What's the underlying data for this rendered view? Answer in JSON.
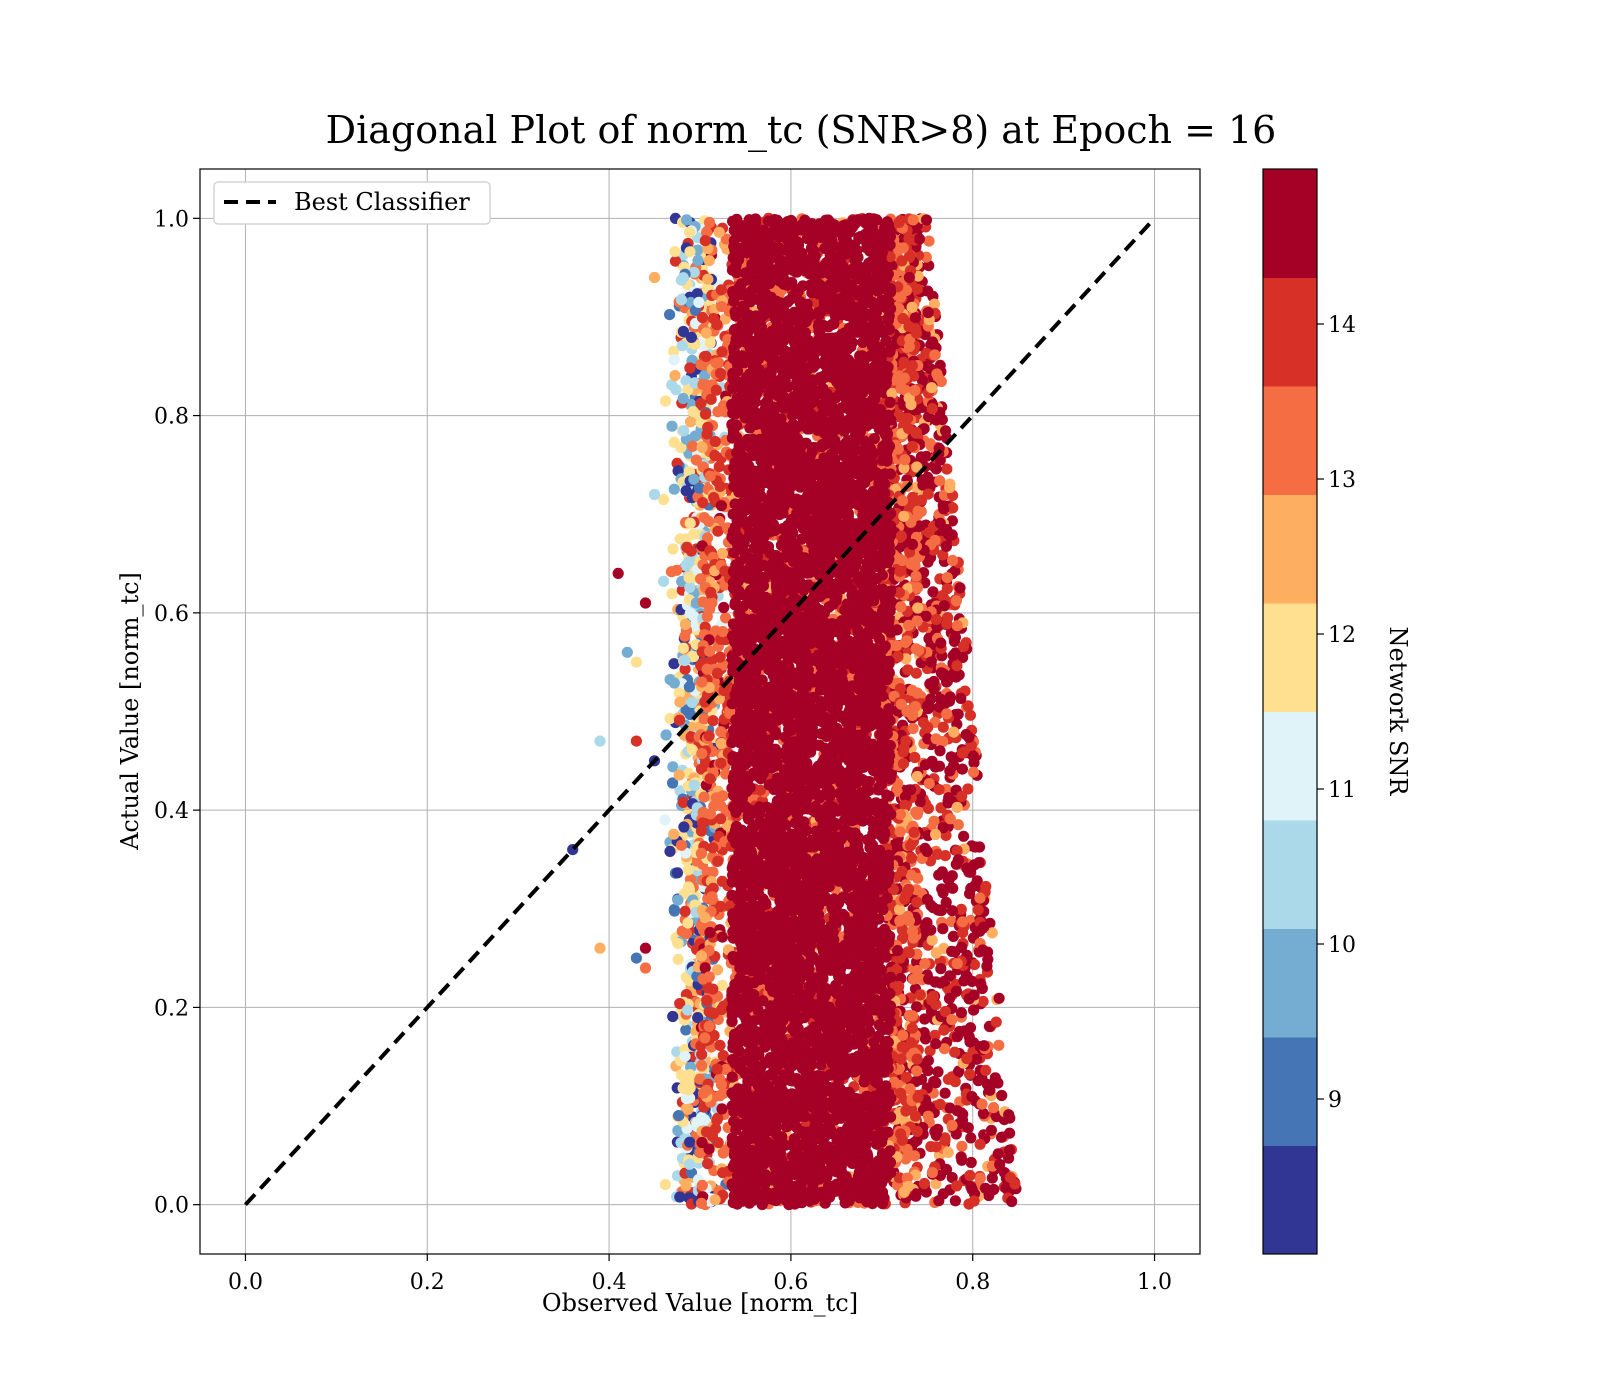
{
  "chart_data": {
    "type": "scatter",
    "title": "Diagonal Plot of norm_tc (SNR>8) at Epoch = 16",
    "xlabel": "Observed Value [norm_tc]",
    "ylabel": "Actual Value [norm_tc]",
    "xlim": [
      -0.05,
      1.05
    ],
    "ylim": [
      -0.05,
      1.05
    ],
    "xticks": [
      "0.0",
      "0.2",
      "0.4",
      "0.6",
      "0.8",
      "1.0"
    ],
    "yticks": [
      "0.0",
      "0.2",
      "0.4",
      "0.6",
      "0.8",
      "1.0"
    ],
    "grid": true,
    "legend": {
      "placement": "top-left",
      "entries": [
        "Best Classifier"
      ]
    },
    "reference_line": {
      "name": "Best Classifier",
      "style": "dashed",
      "color": "#000000",
      "x": [
        0,
        1
      ],
      "y": [
        0,
        1
      ]
    },
    "colorbar": {
      "label": "Network SNR",
      "range": [
        8,
        15
      ],
      "ticks": [
        "9",
        "10",
        "11",
        "12",
        "13",
        "14"
      ],
      "colors": [
        "#313695",
        "#4575b4",
        "#74add1",
        "#abd9e9",
        "#e0f3f8",
        "#fee090",
        "#fdae61",
        "#f46d43",
        "#d73027",
        "#a50026"
      ],
      "top_color": "#a50026"
    },
    "scatter_description": {
      "core_x_range": [
        0.55,
        0.7
      ],
      "y_range": [
        0.0,
        1.0
      ],
      "spread_x_range_top": [
        0.48,
        0.8
      ],
      "spread_x_range_bottom": [
        0.48,
        0.87
      ],
      "dominant_color": "#a50026"
    }
  }
}
